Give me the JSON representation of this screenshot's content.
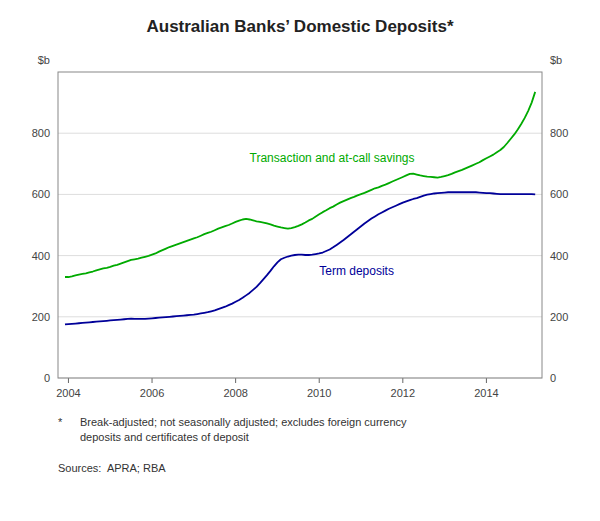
{
  "chart_data": {
    "type": "line",
    "title": "Australian Banks’ Domestic Deposits*",
    "ylabel": "$b",
    "y2label": "$b",
    "footnote_mark": "*",
    "footnote": "Break-adjusted; not seasonally adjusted; excludes foreign currency\ndeposits and certificates of deposit",
    "source": "Sources:  APRA; RBA",
    "grid": true,
    "xlim": [
      2003.75,
      2015.33
    ],
    "xticks": [
      2004,
      2006,
      2008,
      2010,
      2012,
      2014
    ],
    "ylim": [
      0,
      1000
    ],
    "yticks": [
      0,
      200,
      400,
      600,
      800
    ],
    "y2lim": [
      0,
      1000
    ],
    "y2ticks": [
      0,
      200,
      400,
      600,
      800
    ],
    "x": [
      2003.917,
      2004.0,
      2004.083,
      2004.167,
      2004.25,
      2004.333,
      2004.417,
      2004.5,
      2004.583,
      2004.667,
      2004.75,
      2004.833,
      2004.917,
      2005.0,
      2005.083,
      2005.167,
      2005.25,
      2005.333,
      2005.417,
      2005.5,
      2005.583,
      2005.667,
      2005.75,
      2005.833,
      2005.917,
      2006.0,
      2006.083,
      2006.167,
      2006.25,
      2006.333,
      2006.417,
      2006.5,
      2006.583,
      2006.667,
      2006.75,
      2006.833,
      2006.917,
      2007.0,
      2007.083,
      2007.167,
      2007.25,
      2007.333,
      2007.417,
      2007.5,
      2007.583,
      2007.667,
      2007.75,
      2007.833,
      2007.917,
      2008.0,
      2008.083,
      2008.167,
      2008.25,
      2008.333,
      2008.417,
      2008.5,
      2008.583,
      2008.667,
      2008.75,
      2008.833,
      2008.917,
      2009.0,
      2009.083,
      2009.167,
      2009.25,
      2009.333,
      2009.417,
      2009.5,
      2009.583,
      2009.667,
      2009.75,
      2009.833,
      2009.917,
      2010.0,
      2010.083,
      2010.167,
      2010.25,
      2010.333,
      2010.417,
      2010.5,
      2010.583,
      2010.667,
      2010.75,
      2010.833,
      2010.917,
      2011.0,
      2011.083,
      2011.167,
      2011.25,
      2011.333,
      2011.417,
      2011.5,
      2011.583,
      2011.667,
      2011.75,
      2011.833,
      2011.917,
      2012.0,
      2012.083,
      2012.167,
      2012.25,
      2012.333,
      2012.417,
      2012.5,
      2012.583,
      2012.667,
      2012.75,
      2012.833,
      2012.917,
      2013.0,
      2013.083,
      2013.167,
      2013.25,
      2013.333,
      2013.417,
      2013.5,
      2013.583,
      2013.667,
      2013.75,
      2013.833,
      2013.917,
      2014.0,
      2014.083,
      2014.167,
      2014.25,
      2014.333,
      2014.417,
      2014.5,
      2014.583,
      2014.667,
      2014.75,
      2014.833,
      2014.917,
      2015.0,
      2015.083,
      2015.167
    ],
    "series": [
      {
        "name": "Transaction and at-call savings",
        "color": "#00AA00",
        "values": [
          330,
          330,
          332,
          335,
          338,
          340,
          342,
          345,
          348,
          352,
          355,
          358,
          360,
          363,
          367,
          370,
          374,
          378,
          382,
          386,
          388,
          390,
          393,
          396,
          399,
          403,
          407,
          413,
          418,
          423,
          428,
          432,
          436,
          440,
          444,
          448,
          452,
          456,
          460,
          465,
          470,
          474,
          478,
          483,
          488,
          492,
          496,
          500,
          505,
          510,
          514,
          518,
          520,
          518,
          515,
          512,
          510,
          508,
          505,
          502,
          498,
          495,
          492,
          490,
          488,
          490,
          493,
          497,
          502,
          508,
          515,
          520,
          528,
          535,
          542,
          548,
          555,
          560,
          567,
          573,
          578,
          583,
          588,
          592,
          597,
          601,
          605,
          610,
          615,
          620,
          623,
          628,
          632,
          637,
          642,
          647,
          652,
          657,
          662,
          667,
          668,
          665,
          662,
          660,
          658,
          657,
          656,
          655,
          657,
          660,
          663,
          667,
          672,
          676,
          680,
          685,
          690,
          695,
          700,
          705,
          712,
          718,
          724,
          730,
          738,
          745,
          755,
          768,
          782,
          796,
          812,
          830,
          850,
          873,
          900,
          935
        ]
      },
      {
        "name": "Term deposits",
        "color": "#000099",
        "values": [
          175,
          176,
          177,
          178,
          179,
          180,
          181,
          182,
          183,
          184,
          185,
          186,
          187,
          188,
          189,
          190,
          191,
          192,
          193,
          194,
          193,
          193,
          193,
          193,
          194,
          195,
          196,
          197,
          198,
          199,
          200,
          201,
          202,
          203,
          204,
          205,
          206,
          207,
          209,
          211,
          213,
          215,
          218,
          221,
          225,
          229,
          233,
          238,
          243,
          249,
          255,
          262,
          270,
          278,
          288,
          298,
          310,
          323,
          336,
          350,
          365,
          378,
          388,
          393,
          397,
          400,
          402,
          403,
          403,
          402,
          402,
          403,
          405,
          407,
          410,
          415,
          420,
          427,
          435,
          443,
          451,
          460,
          469,
          478,
          487,
          496,
          505,
          513,
          521,
          528,
          535,
          541,
          547,
          553,
          558,
          563,
          568,
          573,
          577,
          581,
          585,
          588,
          592,
          596,
          599,
          601,
          603,
          604,
          605,
          606,
          607,
          607,
          607,
          607,
          607,
          607,
          607,
          607,
          607,
          606,
          605,
          604,
          604,
          603,
          602,
          601,
          601,
          601,
          601,
          601,
          601,
          601,
          601,
          601,
          601,
          600
        ]
      }
    ]
  }
}
